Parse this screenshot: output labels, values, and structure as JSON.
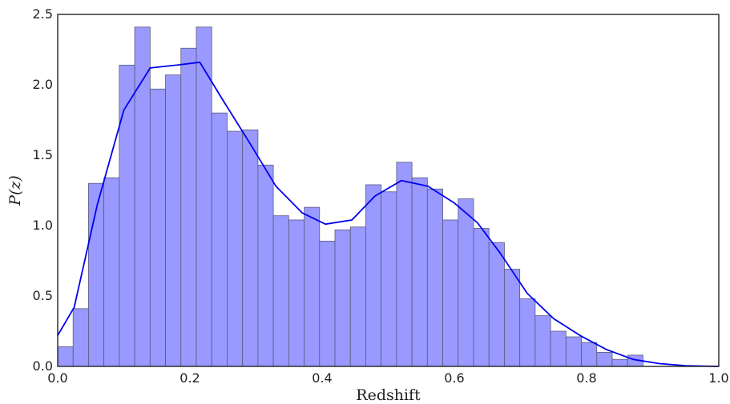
{
  "chart_data": {
    "type": "bar",
    "title": "",
    "xlabel": "Redshift",
    "ylabel": "P(z)",
    "xlim": [
      0.0,
      1.0
    ],
    "ylim": [
      0.0,
      2.5
    ],
    "grid": false,
    "x_ticks": [
      {
        "value": 0.0,
        "label": "0.0"
      },
      {
        "value": 0.2,
        "label": "0.2"
      },
      {
        "value": 0.4,
        "label": "0.4"
      },
      {
        "value": 0.6,
        "label": "0.6"
      },
      {
        "value": 0.8,
        "label": "0.8"
      },
      {
        "value": 1.0,
        "label": "1.0"
      }
    ],
    "y_ticks": [
      {
        "value": 0.0,
        "label": "0.0"
      },
      {
        "value": 0.5,
        "label": "0.5"
      },
      {
        "value": 1.0,
        "label": "1.0"
      },
      {
        "value": 1.5,
        "label": "1.5"
      },
      {
        "value": 2.0,
        "label": "2.0"
      },
      {
        "value": 2.5,
        "label": "2.5"
      }
    ],
    "bin_edges": [
      0.0,
      0.0233,
      0.0466,
      0.0699,
      0.0932,
      0.1165,
      0.1398,
      0.1631,
      0.1864,
      0.2097,
      0.233,
      0.2563,
      0.2796,
      0.3029,
      0.3262,
      0.3495,
      0.3728,
      0.3961,
      0.4194,
      0.4427,
      0.466,
      0.4893,
      0.5126,
      0.5359,
      0.5592,
      0.5825,
      0.6058,
      0.6291,
      0.6524,
      0.6757,
      0.699,
      0.7223,
      0.7456,
      0.7689,
      0.7922,
      0.8155,
      0.8388,
      0.8621,
      0.8854
    ],
    "histogram": [
      0.14,
      0.41,
      1.3,
      1.34,
      2.14,
      2.41,
      1.97,
      2.07,
      2.26,
      2.41,
      1.8,
      1.67,
      1.68,
      1.43,
      1.07,
      1.04,
      1.13,
      0.89,
      0.97,
      0.99,
      1.29,
      1.24,
      1.45,
      1.34,
      1.26,
      1.04,
      1.19,
      0.98,
      0.88,
      0.69,
      0.48,
      0.36,
      0.25,
      0.21,
      0.17,
      0.1,
      0.05,
      0.08
    ],
    "curve": {
      "x": [
        0.0,
        0.025,
        0.06,
        0.1,
        0.14,
        0.18,
        0.215,
        0.25,
        0.29,
        0.33,
        0.37,
        0.405,
        0.445,
        0.48,
        0.52,
        0.56,
        0.6,
        0.635,
        0.67,
        0.71,
        0.75,
        0.79,
        0.83,
        0.87,
        0.91,
        0.95,
        1.0
      ],
      "y": [
        0.22,
        0.42,
        1.15,
        1.82,
        2.12,
        2.14,
        2.16,
        1.89,
        1.59,
        1.28,
        1.09,
        1.01,
        1.04,
        1.21,
        1.32,
        1.28,
        1.16,
        1.02,
        0.8,
        0.52,
        0.34,
        0.22,
        0.12,
        0.05,
        0.02,
        0.005,
        0.0
      ]
    },
    "colors": {
      "bar_fill": "#9999ff",
      "bar_edge": "#5a5a7a",
      "line": "#0000ee",
      "frame": "#222222",
      "text": "#222222"
    }
  }
}
